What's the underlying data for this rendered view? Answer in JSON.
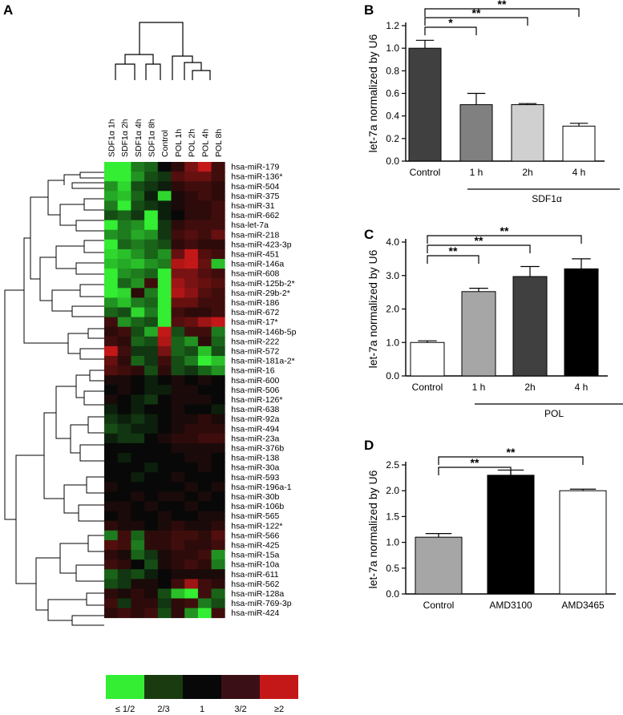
{
  "panels": {
    "A": "A",
    "B": "B",
    "C": "C",
    "D": "D"
  },
  "chart_data": [
    {
      "type": "heatmap",
      "panel": "A",
      "samples": [
        "SDF1α 1h",
        "SDF1α 2h",
        "SDF1α 4h",
        "SDF1α 8h",
        "Control",
        "POL 1h",
        "POL 2h",
        "POL 4h",
        "POL 8h"
      ],
      "rows": [
        "hsa-miR-179",
        "hsa-miR-136*",
        "hsa-miR-504",
        "hsa-miR-375",
        "hsa-miR-31",
        "hsa-miR-662",
        "hsa-let-7a",
        "hsa-miR-218",
        "hsa-miR-423-3p",
        "hsa-miR-451",
        "hsa-miR-146a",
        "hsa-miR-608",
        "hsa-miR-125b-2*",
        "hsa-miR-29b-2*",
        "hsa-miR-186",
        "hsa-miR-672",
        "hsa-miR-17*",
        "hsa-miR-146b-5p",
        "hsa-miR-222",
        "hsa-miR-572",
        "hsa-miR-181a-2*",
        "hsa-miR-16",
        "hsa-miR-600",
        "hsa-miR-506",
        "hsa-miR-126*",
        "hsa-miR-638",
        "hsa-miR-92a",
        "hsa-miR-494",
        "hsa-miR-23a",
        "hsa-miR-376b",
        "hsa-miR-138",
        "hsa-miR-30a",
        "hsa-miR-593",
        "hsa-miR-196a-1",
        "hsa-miR-30b",
        "hsa-miR-106b",
        "hsa-miR-565",
        "hsa-miR-122*",
        "hsa-miR-566",
        "hsa-miR-425",
        "hsa-miR-15a",
        "hsa-miR-10a",
        "hsa-miR-611",
        "hsa-miR-562",
        "hsa-miR-128a",
        "hsa-miR-769-3p",
        "hsa-miR-424"
      ],
      "values": [
        [
          -2.0,
          -1.3,
          -0.5,
          -0.4,
          0.0,
          0.2,
          0.6,
          1.6,
          0.3
        ],
        [
          -1.5,
          -1.0,
          -0.6,
          -0.3,
          -0.2,
          0.4,
          0.5,
          0.5,
          0.3
        ],
        [
          -0.6,
          -0.9,
          -0.3,
          -0.2,
          -0.1,
          0.2,
          0.3,
          0.3,
          0.2
        ],
        [
          -0.7,
          -0.8,
          -0.4,
          -0.1,
          -0.9,
          0.1,
          0.2,
          0.3,
          0.2
        ],
        [
          -0.5,
          -2.0,
          -0.3,
          -0.2,
          -0.1,
          0.1,
          0.2,
          0.2,
          0.3
        ],
        [
          -0.3,
          -0.4,
          -0.2,
          -1.8,
          -0.1,
          0.0,
          0.2,
          0.2,
          0.3
        ],
        [
          -1.6,
          -0.5,
          -0.6,
          -1.3,
          -0.2,
          0.2,
          0.3,
          0.3,
          0.3
        ],
        [
          -0.6,
          -0.5,
          -0.7,
          -0.6,
          -0.2,
          0.3,
          0.4,
          0.3,
          0.5
        ],
        [
          -2.0,
          -0.4,
          -0.5,
          -0.4,
          -0.3,
          0.2,
          0.3,
          0.2,
          0.2
        ],
        [
          -0.9,
          -0.8,
          -0.6,
          -0.4,
          -0.6,
          0.5,
          1.8,
          0.4,
          0.3
        ],
        [
          -0.8,
          -0.7,
          -0.8,
          -0.6,
          -0.5,
          0.9,
          2.0,
          0.5,
          -0.8
        ],
        [
          -1.8,
          -0.6,
          -0.5,
          -0.4,
          -1.6,
          0.6,
          0.6,
          0.4,
          0.3
        ],
        [
          -1.7,
          -0.4,
          -0.6,
          0.3,
          -1.8,
          0.8,
          0.6,
          0.5,
          0.4
        ],
        [
          -1.2,
          -0.9,
          0.2,
          -0.5,
          -1.5,
          0.9,
          0.7,
          0.4,
          0.3
        ],
        [
          -0.6,
          -0.8,
          -0.5,
          -0.4,
          -1.7,
          0.5,
          0.5,
          0.3,
          0.3
        ],
        [
          -0.4,
          -0.3,
          -0.9,
          -0.5,
          -2.0,
          0.3,
          0.2,
          0.2,
          0.3
        ],
        [
          0.3,
          -0.6,
          -0.4,
          -0.3,
          -2.0,
          0.4,
          0.5,
          0.8,
          1.2
        ],
        [
          0.2,
          0.3,
          -0.3,
          -0.7,
          1.0,
          -0.3,
          0.3,
          0.3,
          -0.5
        ],
        [
          0.3,
          0.2,
          -0.4,
          -0.3,
          0.9,
          -0.4,
          -0.6,
          0.2,
          -0.4
        ],
        [
          1.0,
          0.3,
          -0.2,
          -0.2,
          0.6,
          -0.4,
          -0.3,
          -0.8,
          -0.3
        ],
        [
          0.5,
          0.2,
          -0.4,
          -0.2,
          0.3,
          -0.3,
          -0.5,
          -1.6,
          -0.8
        ],
        [
          0.4,
          0.3,
          0.2,
          -0.3,
          0.2,
          -0.3,
          -0.2,
          -0.4,
          -0.6
        ],
        [
          0.1,
          0.1,
          0.0,
          -0.1,
          0.0,
          0.1,
          0.0,
          0.1,
          0.0
        ],
        [
          0.0,
          0.1,
          0.0,
          -0.1,
          -0.1,
          0.1,
          0.1,
          0.0,
          0.0
        ],
        [
          0.1,
          0.0,
          -0.1,
          -0.2,
          0.0,
          0.1,
          0.1,
          0.1,
          0.0
        ],
        [
          -0.1,
          0.0,
          -0.1,
          0.0,
          0.0,
          0.1,
          0.0,
          0.0,
          -0.1
        ],
        [
          -0.2,
          -0.1,
          -0.2,
          -0.1,
          0.0,
          0.1,
          0.1,
          0.2,
          0.1
        ],
        [
          -0.3,
          -0.2,
          -0.1,
          -0.1,
          0.0,
          0.1,
          0.2,
          0.2,
          0.2
        ],
        [
          -0.1,
          -0.2,
          -0.2,
          0.0,
          0.1,
          0.2,
          0.2,
          0.3,
          0.3
        ],
        [
          0.0,
          0.0,
          0.0,
          0.0,
          0.0,
          0.1,
          0.1,
          0.1,
          0.1
        ],
        [
          0.0,
          -0.1,
          0.0,
          0.0,
          0.0,
          0.0,
          0.1,
          0.1,
          0.0
        ],
        [
          0.0,
          0.0,
          0.0,
          -0.1,
          0.0,
          0.0,
          0.0,
          0.1,
          0.0
        ],
        [
          0.0,
          0.0,
          -0.1,
          0.0,
          0.0,
          0.1,
          0.0,
          0.0,
          0.0
        ],
        [
          0.1,
          0.0,
          0.0,
          0.0,
          0.0,
          0.0,
          0.1,
          0.0,
          0.1
        ],
        [
          0.0,
          0.0,
          0.1,
          0.0,
          0.1,
          0.1,
          0.0,
          0.1,
          0.0
        ],
        [
          0.1,
          0.1,
          0.0,
          0.1,
          0.0,
          0.0,
          0.1,
          0.0,
          0.0
        ],
        [
          0.0,
          0.1,
          0.0,
          0.0,
          0.1,
          0.0,
          0.0,
          0.1,
          0.1
        ],
        [
          0.2,
          0.1,
          0.1,
          0.0,
          0.1,
          0.2,
          0.1,
          0.1,
          0.2
        ],
        [
          -0.5,
          0.3,
          -0.4,
          0.2,
          0.2,
          0.3,
          0.3,
          0.2,
          0.4
        ],
        [
          0.4,
          0.3,
          -0.5,
          0.2,
          0.2,
          0.3,
          0.2,
          0.2,
          0.3
        ],
        [
          0.2,
          0.1,
          -0.4,
          -0.2,
          0.1,
          0.2,
          0.2,
          0.3,
          -0.6
        ],
        [
          0.3,
          0.2,
          0.0,
          -0.3,
          0.1,
          0.2,
          0.3,
          0.2,
          -0.5
        ],
        [
          -0.4,
          -0.2,
          -0.3,
          -0.1,
          0.0,
          0.1,
          0.1,
          0.1,
          0.1
        ],
        [
          -0.3,
          -0.2,
          0.1,
          0.1,
          0.0,
          0.3,
          0.8,
          0.3,
          0.2
        ],
        [
          0.2,
          0.1,
          0.2,
          0.1,
          -0.3,
          -0.8,
          -1.0,
          0.3,
          -0.4
        ],
        [
          0.3,
          -0.2,
          0.2,
          0.2,
          -0.2,
          0.2,
          0.3,
          -0.5,
          -0.3
        ],
        [
          0.2,
          0.3,
          0.2,
          0.3,
          -0.3,
          0.2,
          -0.6,
          -1.6,
          0.3
        ]
      ],
      "value_scale": "log2 fold change (−1 = ≤1/2, 0 = 1, +1 = ≥2)",
      "legend": {
        "labels": [
          "≤ 1/2",
          "2/3",
          "1",
          "3/2",
          "≥2"
        ],
        "colors": [
          "#33ee33",
          "#1a3a10",
          "#080808",
          "#3a1016",
          "#c41818"
        ]
      }
    },
    {
      "type": "bar",
      "panel": "B",
      "ylabel": "let-7a normalized by U6",
      "categories": [
        "Control",
        "1 h",
        "2h",
        "4 h"
      ],
      "values": [
        1.0,
        0.5,
        0.5,
        0.31
      ],
      "errors": [
        0.07,
        0.1,
        0.01,
        0.025
      ],
      "colors": [
        "#404040",
        "#808080",
        "#d0d0d0",
        "#ffffff"
      ],
      "yticks": [
        "0.0",
        "0.2",
        "0.4",
        "0.6",
        "0.8",
        "1.0",
        "1.2"
      ],
      "ylim": [
        0,
        1.2
      ],
      "group_label": "SDF1α",
      "significance": [
        "*",
        "**",
        "**"
      ]
    },
    {
      "type": "bar",
      "panel": "C",
      "ylabel": "let-7a normalized by U6",
      "categories": [
        "Control",
        "1 h",
        "2h",
        "4 h"
      ],
      "values": [
        1.0,
        2.52,
        2.97,
        3.2
      ],
      "errors": [
        0.05,
        0.1,
        0.3,
        0.3
      ],
      "colors": [
        "#ffffff",
        "#a6a6a6",
        "#404040",
        "#000000"
      ],
      "yticks": [
        "0.0",
        "1.0",
        "2.0",
        "3.0",
        "4.0"
      ],
      "ylim": [
        0,
        4
      ],
      "group_label": "POL",
      "significance": [
        "**",
        "**",
        "**"
      ]
    },
    {
      "type": "bar",
      "panel": "D",
      "ylabel": "let-7a normalized by U6",
      "categories": [
        "Control",
        "AMD3100",
        "AMD3465"
      ],
      "values": [
        1.1,
        2.3,
        2.0
      ],
      "errors": [
        0.07,
        0.1,
        0.03
      ],
      "colors": [
        "#a6a6a6",
        "#000000",
        "#ffffff"
      ],
      "yticks": [
        "0.0",
        "0.5",
        "1.0",
        "1.5",
        "2.0",
        "2.5"
      ],
      "ylim": [
        0,
        2.5
      ],
      "significance": [
        "**",
        "**"
      ]
    }
  ]
}
